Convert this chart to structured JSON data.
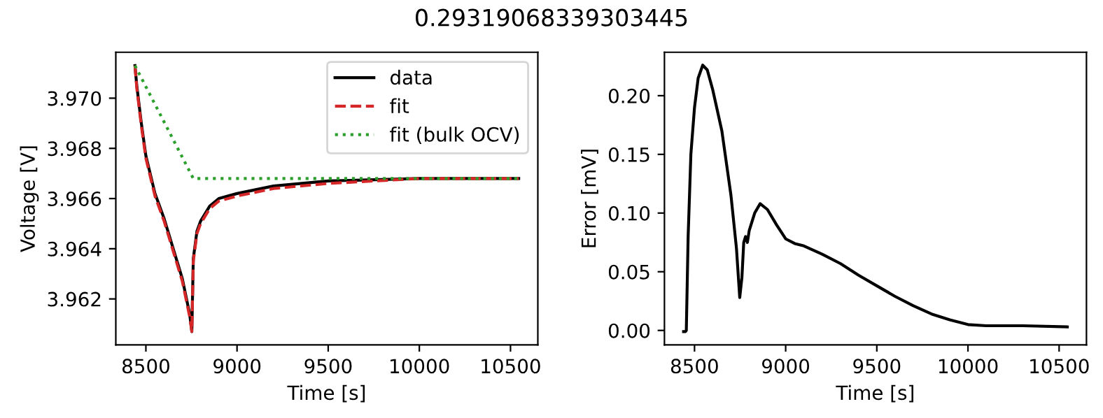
{
  "chart_data": [
    {
      "type": "line",
      "xlabel": "Time [s]",
      "ylabel": "Voltage [V]",
      "title": "0.29319068339303445",
      "xlim": [
        8335,
        10650
      ],
      "ylim": [
        3.96017,
        3.97183
      ],
      "xticks": [
        8500,
        9000,
        9500,
        10000,
        10500
      ],
      "yticks": [
        {
          "value": 3.962,
          "label": "3.962"
        },
        {
          "value": 3.964,
          "label": "3.964"
        },
        {
          "value": 3.966,
          "label": "3.966"
        },
        {
          "value": 3.968,
          "label": "3.968"
        },
        {
          "value": 3.97,
          "label": "3.970"
        }
      ],
      "legend": "top right",
      "grid": false,
      "series": [
        {
          "name": "data",
          "color": "#000000",
          "line_style": "solid",
          "x": [
            8440,
            8450,
            8475,
            8500,
            8550,
            8600,
            8650,
            8700,
            8740,
            8752,
            8760,
            8780,
            8800,
            8850,
            8900,
            9000,
            9200,
            9500,
            10000,
            10545
          ],
          "values": [
            3.9713,
            3.9705,
            3.969,
            3.9677,
            3.9662,
            3.9652,
            3.964,
            3.9628,
            3.9614,
            3.9607,
            3.9636,
            3.9647,
            3.9651,
            3.9657,
            3.966,
            3.9662,
            3.9665,
            3.9667,
            3.9668,
            3.9668
          ]
        },
        {
          "name": "fit",
          "color": "#d62728",
          "line_style": "dashed",
          "x": [
            8440,
            8450,
            8475,
            8500,
            8550,
            8600,
            8650,
            8700,
            8740,
            8752,
            8760,
            8780,
            8800,
            8850,
            8900,
            9000,
            9200,
            9500,
            10000,
            10545
          ],
          "values": [
            3.9713,
            3.9704,
            3.9689,
            3.9676,
            3.9661,
            3.9651,
            3.9639,
            3.9627,
            3.9613,
            3.9607,
            3.9635,
            3.9646,
            3.965,
            3.9656,
            3.9659,
            3.9661,
            3.9664,
            3.9666,
            3.9668,
            3.9668
          ]
        },
        {
          "name": "fit (bulk OCV)",
          "color": "#2ca02c",
          "line_style": "dotted",
          "x": [
            8440,
            8760,
            10545
          ],
          "values": [
            3.9713,
            3.9668,
            3.9668
          ]
        }
      ]
    },
    {
      "type": "line",
      "xlabel": "Time [s]",
      "ylabel": "Error [mV]",
      "xlim": [
        8335,
        10650
      ],
      "ylim": [
        -0.0123,
        0.237
      ],
      "xticks": [
        8500,
        9000,
        9500,
        10000,
        10500
      ],
      "yticks": [
        {
          "value": 0,
          "label": "0.00"
        },
        {
          "value": 0.05,
          "label": "0.05"
        },
        {
          "value": 0.1,
          "label": "0.10"
        },
        {
          "value": 0.15,
          "label": "0.15"
        },
        {
          "value": 0.2,
          "label": "0.20"
        }
      ],
      "grid": false,
      "series": [
        {
          "color": "#000000",
          "line_style": "solid",
          "x": [
            8440,
            8450,
            8455,
            8465,
            8480,
            8500,
            8520,
            8545,
            8570,
            8600,
            8650,
            8700,
            8730,
            8748,
            8760,
            8770,
            8780,
            8790,
            8800,
            8830,
            8860,
            8900,
            8950,
            9000,
            9050,
            9100,
            9200,
            9300,
            9400,
            9500,
            9600,
            9700,
            9800,
            9900,
            10000,
            10100,
            10300,
            10545
          ],
          "values": [
            -0.001,
            -0.001,
            0.0,
            0.08,
            0.15,
            0.19,
            0.215,
            0.226,
            0.222,
            0.205,
            0.17,
            0.115,
            0.07,
            0.028,
            0.045,
            0.075,
            0.08,
            0.075,
            0.085,
            0.1,
            0.108,
            0.103,
            0.09,
            0.078,
            0.074,
            0.072,
            0.065,
            0.057,
            0.047,
            0.038,
            0.029,
            0.021,
            0.014,
            0.009,
            0.005,
            0.004,
            0.004,
            0.003
          ]
        }
      ]
    }
  ]
}
